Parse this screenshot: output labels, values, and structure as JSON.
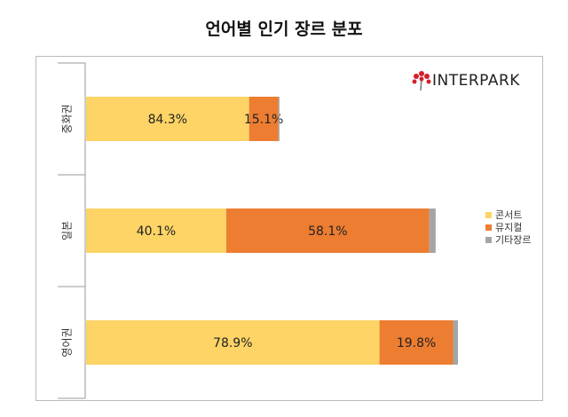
{
  "chart_data": {
    "type": "bar",
    "orientation": "horizontal",
    "stacked": true,
    "title": "언어별 인기 장르 분포",
    "categories": [
      "중화권",
      "일본",
      "영어권"
    ],
    "series": [
      {
        "name": "콘서트",
        "color": "#FDD465",
        "values": [
          84.3,
          40.1,
          78.9
        ],
        "labels": [
          "84.3%",
          "40.1%",
          "78.9%"
        ]
      },
      {
        "name": "뮤지컬",
        "color": "#ED7D31",
        "values": [
          15.1,
          58.1,
          19.8
        ],
        "labels": [
          "15.1%",
          "58.1%",
          "19.8%"
        ]
      },
      {
        "name": "기타장르",
        "color": "#A5A5A5",
        "values": [
          0.6,
          1.8,
          1.3
        ],
        "labels": [
          "",
          "",
          ""
        ]
      }
    ],
    "relative_bar_length": [
      0.52,
      0.94,
      1.0
    ],
    "legend_position": "right",
    "grid": false
  },
  "logo": {
    "text": "INTERPARK"
  }
}
